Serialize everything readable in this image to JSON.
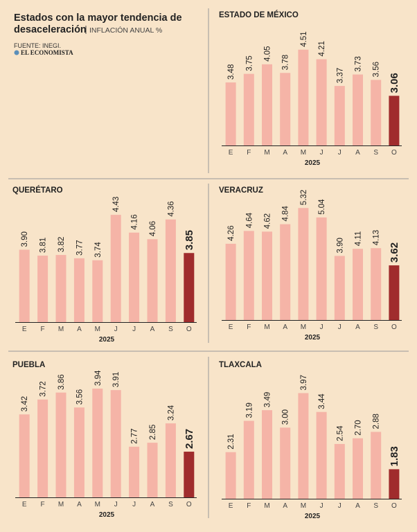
{
  "header": {
    "title_line1": "Estados con la mayor tendencia de",
    "title_line2": "desaceleración",
    "subtitle": "INFLACIÓN ANUAL %",
    "source": "FUENTE: INEGI.",
    "brand": "EL ECONOMISTA"
  },
  "chart_data": [
    {
      "type": "bar",
      "title": "ESTADO DE MÉXICO",
      "x_label": "2025",
      "categories": [
        "E",
        "F",
        "M",
        "A",
        "M",
        "J",
        "J",
        "A",
        "S",
        "O"
      ],
      "values": [
        3.48,
        3.75,
        4.05,
        3.78,
        4.51,
        4.21,
        3.37,
        3.73,
        3.56,
        3.06
      ],
      "value_labels": [
        "3.48",
        "3.75",
        "4.05",
        "3.78",
        "4.51",
        "4.21",
        "3.37",
        "3.73",
        "3.56",
        "3.06"
      ],
      "colors": [
        "#f5b4a7",
        "#f5b4a7",
        "#f5b4a7",
        "#f5b4a7",
        "#f5b4a7",
        "#f5b4a7",
        "#f5b4a7",
        "#f5b4a7",
        "#f5b4a7",
        "#a02c2d"
      ],
      "ylim": [
        1.5,
        5.2
      ]
    },
    {
      "type": "bar",
      "title": "QUERÉTARO",
      "x_label": "2025",
      "categories": [
        "E",
        "F",
        "M",
        "A",
        "M",
        "J",
        "J",
        "A",
        "S",
        "O"
      ],
      "values": [
        3.9,
        3.81,
        3.82,
        3.77,
        3.74,
        4.43,
        4.16,
        4.06,
        4.36,
        3.85
      ],
      "value_labels": [
        "3.90",
        "3.81",
        "3.82",
        "3.77",
        "3.74",
        "4.43",
        "4.16",
        "4.06",
        "4.36",
        "3.85"
      ],
      "colors": [
        "#f5b4a7",
        "#f5b4a7",
        "#f5b4a7",
        "#f5b4a7",
        "#f5b4a7",
        "#f5b4a7",
        "#f5b4a7",
        "#f5b4a7",
        "#f5b4a7",
        "#a02c2d"
      ],
      "ylim": [
        2.8,
        4.8
      ]
    },
    {
      "type": "bar",
      "title": "VERACRUZ",
      "x_label": "2025",
      "categories": [
        "E",
        "F",
        "M",
        "A",
        "M",
        "J",
        "J",
        "A",
        "S",
        "O"
      ],
      "values": [
        4.26,
        4.64,
        4.62,
        4.84,
        5.32,
        5.04,
        3.9,
        4.11,
        4.13,
        3.62
      ],
      "value_labels": [
        "4.26",
        "4.64",
        "4.62",
        "4.84",
        "5.32",
        "5.04",
        "3.90",
        "4.11",
        "4.13",
        "3.62"
      ],
      "colors": [
        "#f5b4a7",
        "#f5b4a7",
        "#f5b4a7",
        "#f5b4a7",
        "#f5b4a7",
        "#f5b4a7",
        "#f5b4a7",
        "#f5b4a7",
        "#f5b4a7",
        "#a02c2d"
      ],
      "ylim": [
        2.0,
        5.9
      ]
    },
    {
      "type": "bar",
      "title": "PUEBLA",
      "x_label": "2025",
      "categories": [
        "E",
        "F",
        "M",
        "A",
        "M",
        "J",
        "J",
        "A",
        "S",
        "O"
      ],
      "values": [
        3.42,
        3.72,
        3.86,
        3.56,
        3.94,
        3.91,
        2.77,
        2.85,
        3.24,
        2.67
      ],
      "value_labels": [
        "3.42",
        "3.72",
        "3.86",
        "3.56",
        "3.94",
        "3.91",
        "2.77",
        "2.85",
        "3.24",
        "2.67"
      ],
      "colors": [
        "#f5b4a7",
        "#f5b4a7",
        "#f5b4a7",
        "#f5b4a7",
        "#f5b4a7",
        "#f5b4a7",
        "#f5b4a7",
        "#f5b4a7",
        "#f5b4a7",
        "#a02c2d"
      ],
      "ylim": [
        1.75,
        4.4
      ]
    },
    {
      "type": "bar",
      "title": "TLAXCALA",
      "x_label": "2025",
      "categories": [
        "E",
        "F",
        "M",
        "A",
        "M",
        "J",
        "J",
        "A",
        "S",
        "O"
      ],
      "values": [
        2.31,
        3.19,
        3.49,
        3.0,
        3.97,
        3.44,
        2.54,
        2.7,
        2.88,
        1.83
      ],
      "value_labels": [
        "2.31",
        "3.19",
        "3.49",
        "3.00",
        "3.97",
        "3.44",
        "2.54",
        "2.70",
        "2.88",
        "1.83"
      ],
      "colors": [
        "#f5b4a7",
        "#f5b4a7",
        "#f5b4a7",
        "#f5b4a7",
        "#f5b4a7",
        "#f5b4a7",
        "#f5b4a7",
        "#f5b4a7",
        "#f5b4a7",
        "#a02c2d"
      ],
      "ylim": [
        1.0,
        4.7
      ]
    }
  ]
}
